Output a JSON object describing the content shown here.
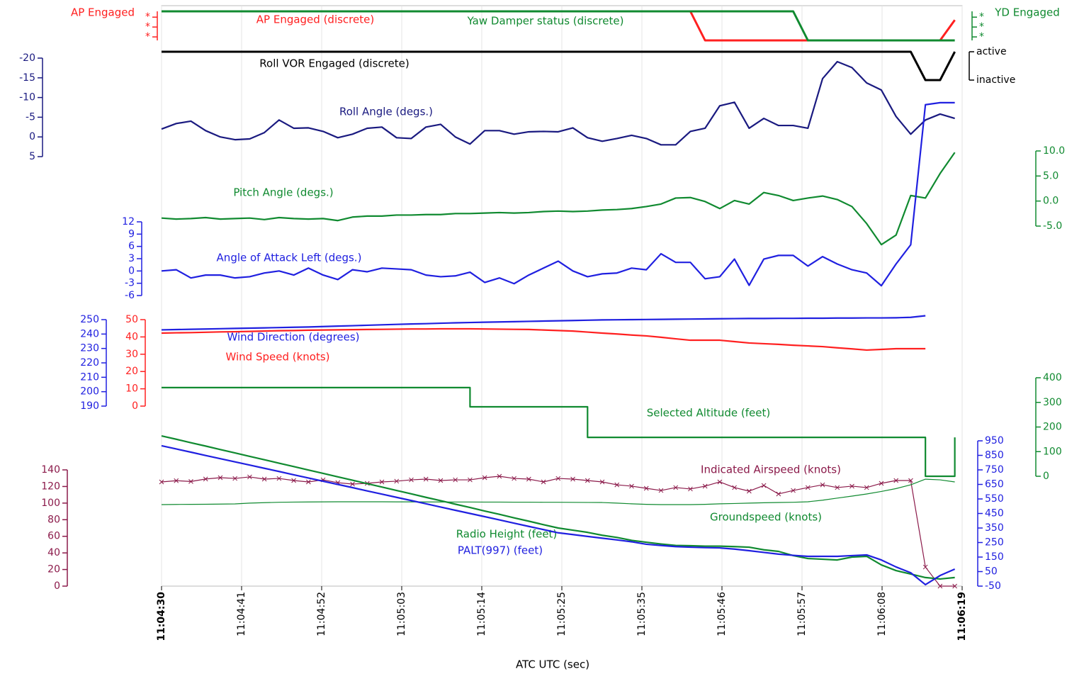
{
  "chart_data": {
    "type": "line",
    "xlabel": "ATC UTC (sec)",
    "xlim": [
      0,
      109
    ],
    "xticks": [
      {
        "value": 0,
        "label": "11:04:30"
      },
      {
        "value": 10.9,
        "label": "11:04:41"
      },
      {
        "value": 21.8,
        "label": "11:04:52"
      },
      {
        "value": 32.7,
        "label": "11:05:03"
      },
      {
        "value": 43.6,
        "label": "11:05:14"
      },
      {
        "value": 54.5,
        "label": "11:05:25"
      },
      {
        "value": 65.4,
        "label": "11:05:35"
      },
      {
        "value": 76.3,
        "label": "11:05:46"
      },
      {
        "value": 87.2,
        "label": "11:05:57"
      },
      {
        "value": 98.1,
        "label": "11:06:08"
      },
      {
        "value": 109,
        "label": "11:06:19"
      }
    ],
    "grid": true,
    "x": [
      0,
      2,
      4,
      6,
      8,
      10,
      12,
      14,
      16,
      18,
      20,
      22,
      24,
      26,
      28,
      30,
      32,
      34,
      36,
      38,
      40,
      42,
      44,
      46,
      48,
      50,
      52,
      54,
      56,
      58,
      60,
      62,
      64,
      66,
      68,
      70,
      72,
      74,
      76,
      78,
      80,
      82,
      84,
      86,
      88,
      90,
      92,
      94,
      96,
      98,
      100,
      102,
      104,
      106,
      108
    ],
    "axes": [
      {
        "label": "AP Engaged",
        "color": "#ff2020",
        "ylim": [
          0,
          1
        ],
        "yticks": [
          {
            "value": 0.8,
            "label": "*"
          },
          {
            "value": 0.46,
            "label": "*"
          },
          {
            "value": 0.12,
            "label": "*"
          }
        ]
      },
      {
        "label": "YD Engaged",
        "color": "#108a30",
        "ylim": [
          0,
          1
        ],
        "yticks": [
          {
            "value": 0.8,
            "label": "*"
          },
          {
            "value": 0.46,
            "label": "*"
          },
          {
            "value": 0.12,
            "label": "*"
          }
        ]
      },
      {
        "color": "#000000",
        "ylim": [
          0,
          1
        ],
        "yticks": [
          {
            "value": 1,
            "label": "active"
          },
          {
            "value": 0,
            "label": "inactive"
          }
        ]
      },
      {
        "color": "#1a1a80",
        "ylim": [
          5,
          -20
        ],
        "yticks": [
          -20,
          -15,
          -10,
          -5,
          0,
          5
        ]
      },
      {
        "color": "#108a30",
        "ylim": [
          -5,
          10
        ],
        "yticks": [
          {
            "value": 10,
            "label": "10.0"
          },
          {
            "value": 5,
            "label": "5.0"
          },
          {
            "value": 0,
            "label": "0.0"
          },
          {
            "value": -5,
            "label": "-5.0"
          }
        ]
      },
      {
        "color": "#2020e0",
        "ylim": [
          -6,
          12
        ],
        "yticks": [
          12,
          9,
          6,
          3,
          0,
          -3,
          -6
        ]
      },
      {
        "color": "#2020e0",
        "ylim": [
          190,
          250
        ],
        "yticks": [
          250,
          240,
          230,
          220,
          210,
          200,
          190
        ]
      },
      {
        "color": "#ff2020",
        "ylim": [
          0,
          50
        ],
        "yticks": [
          50,
          40,
          30,
          20,
          10,
          0
        ]
      },
      {
        "color": "#108a30",
        "ylim": [
          0,
          400
        ],
        "yticks": [
          400,
          300,
          200,
          100,
          0
        ]
      },
      {
        "color": "#8b1a4a",
        "ylim": [
          0,
          140
        ],
        "yticks": [
          140,
          120,
          100,
          80,
          60,
          40,
          20,
          0
        ]
      },
      {
        "color": "#2020e0",
        "ylim": [
          -50,
          950
        ],
        "yticks": [
          950,
          850,
          750,
          650,
          550,
          450,
          350,
          250,
          150,
          50,
          -50
        ]
      }
    ],
    "series": [
      {
        "name": "AP Engaged (discrete)",
        "color": "#ff2020",
        "axis": 0,
        "values": [
          1,
          1,
          1,
          1,
          1,
          1,
          1,
          1,
          1,
          1,
          1,
          1,
          1,
          1,
          1,
          1,
          1,
          1,
          1,
          1,
          1,
          1,
          1,
          1,
          1,
          1,
          1,
          1,
          1,
          1,
          1,
          1,
          1,
          1,
          1,
          1,
          1,
          0,
          0,
          0,
          0,
          0,
          0,
          0,
          0,
          0,
          0,
          0,
          0,
          0,
          0,
          0,
          0,
          0,
          0.7
        ]
      },
      {
        "name": "Yaw Damper status (discrete)",
        "color": "#108a30",
        "axis": 1,
        "values": [
          1,
          1,
          1,
          1,
          1,
          1,
          1,
          1,
          1,
          1,
          1,
          1,
          1,
          1,
          1,
          1,
          1,
          1,
          1,
          1,
          1,
          1,
          1,
          1,
          1,
          1,
          1,
          1,
          1,
          1,
          1,
          1,
          1,
          1,
          1,
          1,
          1,
          1,
          1,
          1,
          1,
          1,
          1,
          1,
          0,
          0,
          0,
          0,
          0,
          0,
          0,
          0,
          0,
          0,
          0
        ]
      },
      {
        "name": "Roll VOR Engaged (discrete)",
        "color": "#000000",
        "axis": 2,
        "values": [
          1,
          1,
          1,
          1,
          1,
          1,
          1,
          1,
          1,
          1,
          1,
          1,
          1,
          1,
          1,
          1,
          1,
          1,
          1,
          1,
          1,
          1,
          1,
          1,
          1,
          1,
          1,
          1,
          1,
          1,
          1,
          1,
          1,
          1,
          1,
          1,
          1,
          1,
          1,
          1,
          1,
          1,
          1,
          1,
          1,
          1,
          1,
          1,
          1,
          1,
          1,
          1,
          0,
          0,
          1
        ]
      },
      {
        "name": "Roll Angle (degs.)",
        "color": "#1a1a80",
        "axis": 3,
        "values": [
          -2.0,
          -3.4,
          -4.0,
          -1.6,
          0,
          0.7,
          0.5,
          -1.1,
          -4.3,
          -2.2,
          -2.3,
          -1.4,
          0.2,
          -0.7,
          -2.2,
          -2.5,
          0.2,
          0.4,
          -2.5,
          -3.2,
          0,
          1.8,
          -1.6,
          -1.6,
          -0.7,
          -1.3,
          -1.4,
          -1.3,
          -2.3,
          0.2,
          1.1,
          0.4,
          -0.4,
          0.4,
          2.0,
          2.0,
          -1.4,
          -2.2,
          -7.9,
          -8.8,
          -2.2,
          -4.7,
          -2.9,
          -2.9,
          -2.2,
          -14.8,
          -19.1,
          -17.6,
          -13.7,
          -11.9,
          -5.2,
          -0.7,
          -4.3,
          -5.8,
          -4.7
        ]
      },
      {
        "name": "Pitch Angle (degs.)",
        "color": "#108a30",
        "axis": 4,
        "values": [
          -3.4,
          -3.6,
          -3.5,
          -3.3,
          -3.6,
          -3.5,
          -3.4,
          -3.7,
          -3.3,
          -3.5,
          -3.6,
          -3.5,
          -3.9,
          -3.2,
          -3.0,
          -3.0,
          -2.8,
          -2.8,
          -2.7,
          -2.7,
          -2.5,
          -2.5,
          -2.4,
          -2.3,
          -2.4,
          -2.3,
          -2.1,
          -2.0,
          -2.1,
          -2.0,
          -1.8,
          -1.7,
          -1.5,
          -1.1,
          -0.6,
          0.6,
          0.7,
          -0.1,
          -1.5,
          0.1,
          -0.6,
          1.7,
          1.1,
          0.1,
          0.6,
          1.0,
          0.3,
          -1.1,
          -4.5,
          -8.7,
          -6.8,
          1.1,
          0.6,
          5.5,
          9.7
        ]
      },
      {
        "name": "Angle of Attack Left (degs.)",
        "color": "#2020e0",
        "axis": 5,
        "values": [
          0,
          0.3,
          -1.7,
          -1.0,
          -1.0,
          -1.7,
          -1.4,
          -0.5,
          0,
          -1.0,
          0.7,
          -1.0,
          -2.1,
          0.3,
          -0.2,
          0.7,
          0.5,
          0.3,
          -1.0,
          -1.4,
          -1.2,
          -0.3,
          -2.8,
          -1.7,
          -3.1,
          -1.0,
          0.7,
          2.4,
          0,
          -1.4,
          -0.7,
          -0.5,
          0.7,
          0.3,
          4.2,
          2.1,
          2.1,
          -1.9,
          -1.4,
          2.9,
          -3.5,
          2.9,
          3.8,
          3.8,
          1.2,
          3.5,
          1.7,
          0.3,
          -0.5,
          -3.6,
          1.7,
          6.4,
          40.6,
          41.1,
          41.1
        ]
      },
      {
        "name": "Wind Direction (degrees)",
        "color": "#2020e0",
        "axis": 6,
        "values": [
          242.9,
          243.1,
          243.3,
          243.5,
          243.7,
          243.9,
          244.1,
          244.3,
          244.5,
          244.7,
          244.9,
          245.2,
          245.5,
          245.8,
          246.1,
          246.4,
          246.7,
          247.0,
          247.2,
          247.5,
          247.8,
          248.0,
          248.2,
          248.4,
          248.6,
          248.8,
          249.0,
          249.2,
          249.4,
          249.6,
          249.8,
          249.9,
          250.0,
          250.1,
          250.2,
          250.3,
          250.4,
          250.5,
          250.6,
          250.7,
          250.8,
          250.8,
          250.9,
          250.9,
          251.0,
          251.0,
          251.1,
          251.1,
          251.2,
          251.2,
          251.3,
          251.6,
          252.7,
          null,
          null
        ]
      },
      {
        "name": "Wind Speed (knots)",
        "color": "#ff2020",
        "axis": 7,
        "values": [
          42.2,
          42.4,
          42.5,
          42.7,
          42.9,
          43.0,
          43.2,
          43.4,
          43.6,
          43.7,
          43.9,
          44.0,
          44.1,
          44.2,
          44.3,
          44.4,
          44.5,
          44.6,
          44.6,
          44.7,
          44.7,
          44.7,
          44.6,
          44.5,
          44.4,
          44.3,
          44.0,
          43.7,
          43.4,
          42.8,
          42.2,
          41.7,
          41.1,
          40.6,
          39.8,
          38.9,
          38.1,
          38.1,
          38.1,
          37.3,
          36.5,
          36.1,
          35.7,
          35.2,
          34.8,
          34.4,
          33.7,
          33.1,
          32.4,
          32.8,
          33.2,
          33.2,
          33.2,
          null,
          null
        ]
      },
      {
        "name": "Selected Altitude (feet)",
        "color": "#108a30",
        "axis": 8,
        "step": true,
        "values": [
          360,
          360,
          360,
          360,
          360,
          360,
          360,
          360,
          360,
          360,
          360,
          360,
          360,
          360,
          360,
          360,
          360,
          360,
          360,
          360,
          360,
          282,
          282,
          282,
          282,
          282,
          282,
          282,
          282,
          158,
          158,
          158,
          158,
          158,
          158,
          158,
          158,
          158,
          158,
          158,
          158,
          158,
          158,
          158,
          158,
          158,
          158,
          158,
          158,
          158,
          158,
          158,
          0,
          0,
          158
        ]
      },
      {
        "name": "Indicated Airspeed (knots)",
        "color": "#8b1a4a",
        "axis": 9,
        "marker": "x",
        "values": [
          125.5,
          127,
          126,
          129,
          130.6,
          129.7,
          131.5,
          128.9,
          129.7,
          127.2,
          125.5,
          128,
          124.6,
          122.9,
          123.8,
          125.5,
          126.4,
          128,
          128.9,
          127.2,
          128,
          128,
          130.6,
          132.3,
          129.7,
          128.9,
          125.5,
          129.7,
          128.9,
          127.2,
          125.5,
          122,
          120.4,
          117.8,
          115.2,
          118.7,
          117,
          120.4,
          125.5,
          118.7,
          114.4,
          121.2,
          111,
          115.2,
          118.7,
          122,
          118.7,
          120.4,
          118.7,
          123.8,
          127.2,
          127.2,
          23,
          0,
          0
        ]
      },
      {
        "name": "Groundspeed (knots)",
        "color": "#108a30",
        "axis": 9,
        "thin": true,
        "values": [
          98.2,
          98.4,
          98.5,
          98.6,
          98.8,
          99.0,
          100.0,
          100.5,
          101.0,
          101.2,
          101.4,
          101.5,
          101.6,
          101.6,
          101.6,
          101.6,
          101.5,
          101.5,
          101.4,
          101.4,
          101.3,
          101.3,
          101.2,
          101.2,
          101.1,
          101.1,
          101.0,
          101.0,
          100.9,
          100.8,
          100.7,
          100.0,
          99.1,
          98.5,
          98.2,
          98.2,
          98.2,
          98.5,
          99.1,
          99.5,
          100,
          100.4,
          100.7,
          101,
          101.6,
          103.5,
          106,
          108.4,
          111,
          114,
          117.5,
          122,
          128.8,
          128,
          125.5
        ]
      },
      {
        "name": "Radio Height (feet)",
        "color": "#108a30",
        "axis": 10,
        "values": [
          984,
          961,
          937,
          914,
          890,
          867,
          843,
          820,
          796,
          773,
          749,
          726,
          702,
          679,
          655,
          632,
          608,
          585,
          561,
          538,
          514,
          491,
          467,
          444,
          420,
          397,
          373,
          350,
          335,
          320,
          300,
          285,
          265,
          252,
          240,
          230,
          228,
          225,
          225,
          222,
          218,
          200,
          189,
          160,
          140,
          135,
          130,
          150,
          155,
          96,
          57,
          33,
          9,
          -1,
          9
        ]
      },
      {
        "name": "PALT(997) (feet)",
        "color": "#2020e0",
        "axis": 10,
        "values": [
          916,
          894,
          872,
          849,
          827,
          805,
          783,
          761,
          739,
          716,
          694,
          672,
          650,
          628,
          605,
          583,
          561,
          539,
          517,
          494,
          472,
          450,
          428,
          406,
          383,
          361,
          339,
          317,
          305,
          292,
          280,
          268,
          255,
          238,
          230,
          222,
          218,
          215,
          213,
          205,
          194,
          182,
          170,
          162,
          155,
          155,
          155,
          160,
          165,
          130,
          82,
          42,
          -40,
          23,
          67
        ]
      }
    ]
  }
}
